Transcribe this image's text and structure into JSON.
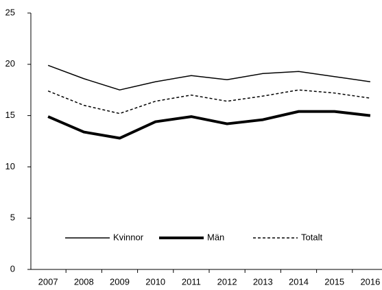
{
  "chart_data": {
    "type": "line",
    "x": [
      "2007",
      "2008",
      "2009",
      "2010",
      "2011",
      "2012",
      "2013",
      "2014",
      "2015",
      "2016"
    ],
    "series": [
      {
        "name": "Kvinnor",
        "color": "#000000",
        "width": 1.5,
        "dash": "none",
        "values": [
          19.9,
          18.6,
          17.5,
          18.3,
          18.9,
          18.5,
          19.1,
          19.3,
          18.8,
          18.3
        ]
      },
      {
        "name": "Män",
        "color": "#000000",
        "width": 4,
        "dash": "none",
        "values": [
          14.9,
          13.4,
          12.8,
          14.4,
          14.9,
          14.2,
          14.6,
          15.4,
          15.4,
          15.0
        ]
      },
      {
        "name": "Totalt",
        "color": "#000000",
        "width": 1.5,
        "dash": "4 3",
        "values": [
          17.4,
          16.0,
          15.2,
          16.4,
          17.0,
          16.4,
          16.9,
          17.5,
          17.2,
          16.7
        ]
      }
    ],
    "ylim": [
      0,
      25
    ],
    "yticks": [
      0,
      5,
      10,
      15,
      20,
      25
    ],
    "grid": false,
    "legend": "bottom-center"
  }
}
